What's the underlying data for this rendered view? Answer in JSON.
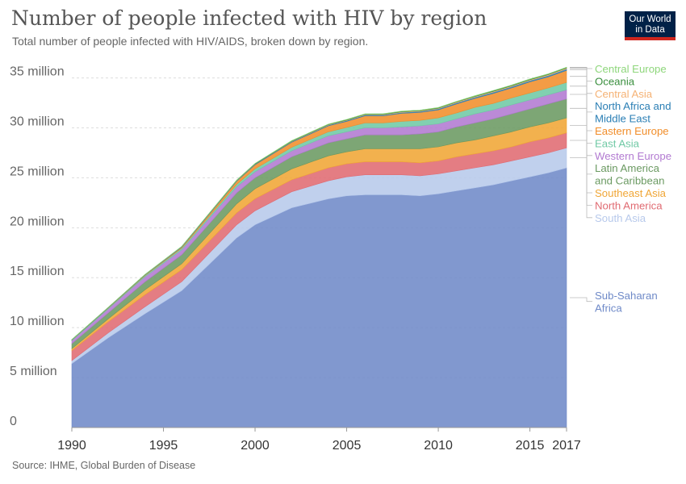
{
  "header": {
    "title": "Number of people infected with HIV by region",
    "subtitle": "Total number of people infected with HIV/AIDS, broken down by region."
  },
  "logo": {
    "line1": "Our World",
    "line2": "in Data",
    "bg_color": "#002147",
    "accent_color": "#ce261e"
  },
  "footer": {
    "source": "Source: IHME, Global Burden of Disease"
  },
  "chart_data": {
    "type": "area",
    "stacked": true,
    "grid": "horizontal dashed",
    "legend_placement": "right (labels at series end)",
    "x": [
      1990,
      1992,
      1994,
      1996,
      1999,
      2000,
      2002,
      2004,
      2005,
      2006,
      2007,
      2008,
      2009,
      2010,
      2011,
      2012,
      2013,
      2014,
      2015,
      2016,
      2017
    ],
    "x_ticks": [
      "1990",
      "1995",
      "2000",
      "2005",
      "2010",
      "2015",
      "2017"
    ],
    "x_tick_values": [
      1990,
      1995,
      2000,
      2005,
      2010,
      2015,
      2017
    ],
    "y_ticks": [
      "0",
      "5 million",
      "10 million",
      "15 million",
      "20 million",
      "25 million",
      "30 million",
      "35 million"
    ],
    "y_tick_values": [
      0,
      5000000,
      10000000,
      15000000,
      20000000,
      25000000,
      30000000,
      35000000
    ],
    "xlim": [
      1990,
      2017
    ],
    "ylim": [
      0,
      36500000
    ],
    "series": [
      {
        "name": "Sub-Saharan Africa",
        "color": "#6f8ac8",
        "values": [
          6.4,
          9.0,
          11.4,
          13.7,
          19.0,
          20.3,
          22.0,
          22.9,
          23.2,
          23.3,
          23.3,
          23.3,
          23.2,
          23.4,
          23.7,
          24.0,
          24.3,
          24.7,
          25.1,
          25.5,
          26.0
        ]
      },
      {
        "name": "South Asia",
        "color": "#b7c9eb",
        "values": [
          0.3,
          0.5,
          0.7,
          0.9,
          1.3,
          1.4,
          1.6,
          1.8,
          1.9,
          2.0,
          2.0,
          2.0,
          2.0,
          2.0,
          2.0,
          2.0,
          2.0,
          2.0,
          2.0,
          2.0,
          2.0
        ]
      },
      {
        "name": "North America",
        "color": "#e06b72",
        "values": [
          1.0,
          1.1,
          1.2,
          1.2,
          1.2,
          1.2,
          1.2,
          1.3,
          1.3,
          1.3,
          1.3,
          1.3,
          1.3,
          1.3,
          1.4,
          1.4,
          1.4,
          1.4,
          1.5,
          1.5,
          1.5
        ]
      },
      {
        "name": "Southeast Asia",
        "color": "#f0a636",
        "values": [
          0.2,
          0.3,
          0.5,
          0.6,
          0.9,
          1.0,
          1.1,
          1.2,
          1.2,
          1.3,
          1.3,
          1.3,
          1.4,
          1.4,
          1.4,
          1.4,
          1.5,
          1.5,
          1.5,
          1.5,
          1.5
        ]
      },
      {
        "name": "Latin America and Caribbean",
        "color": "#6b9a62",
        "values": [
          0.5,
          0.6,
          0.8,
          0.9,
          1.1,
          1.1,
          1.2,
          1.3,
          1.3,
          1.4,
          1.4,
          1.4,
          1.5,
          1.5,
          1.6,
          1.7,
          1.7,
          1.8,
          1.8,
          1.9,
          1.9
        ]
      },
      {
        "name": "Western Europe",
        "color": "#b27ad1",
        "values": [
          0.3,
          0.4,
          0.5,
          0.5,
          0.6,
          0.6,
          0.6,
          0.7,
          0.7,
          0.7,
          0.7,
          0.8,
          0.8,
          0.8,
          0.8,
          0.9,
          0.9,
          0.9,
          0.9,
          0.9,
          0.9
        ]
      },
      {
        "name": "East Asia",
        "color": "#70c9a5",
        "values": [
          0.05,
          0.08,
          0.12,
          0.15,
          0.25,
          0.3,
          0.35,
          0.4,
          0.45,
          0.5,
          0.5,
          0.55,
          0.55,
          0.6,
          0.6,
          0.65,
          0.65,
          0.7,
          0.7,
          0.7,
          0.75
        ]
      },
      {
        "name": "Eastern Europe",
        "color": "#f18e2b",
        "values": [
          0.02,
          0.03,
          0.05,
          0.1,
          0.3,
          0.4,
          0.5,
          0.6,
          0.6,
          0.7,
          0.7,
          0.8,
          0.8,
          0.8,
          0.9,
          0.9,
          1.0,
          1.0,
          1.1,
          1.1,
          1.2
        ]
      },
      {
        "name": "North Africa and Middle East",
        "color": "#2b7fb5",
        "values": [
          0.02,
          0.03,
          0.04,
          0.05,
          0.06,
          0.07,
          0.08,
          0.08,
          0.09,
          0.09,
          0.1,
          0.1,
          0.1,
          0.11,
          0.12,
          0.12,
          0.13,
          0.13,
          0.14,
          0.14,
          0.15
        ]
      },
      {
        "name": "Central Asia",
        "color": "#f5b274",
        "values": [
          0.0,
          0.0,
          0.01,
          0.01,
          0.02,
          0.02,
          0.03,
          0.04,
          0.04,
          0.05,
          0.05,
          0.06,
          0.06,
          0.06,
          0.07,
          0.07,
          0.08,
          0.08,
          0.08,
          0.09,
          0.09
        ]
      },
      {
        "name": "Oceania",
        "color": "#3a8f3e",
        "values": [
          0.01,
          0.01,
          0.01,
          0.02,
          0.03,
          0.03,
          0.04,
          0.04,
          0.05,
          0.05,
          0.05,
          0.05,
          0.05,
          0.05,
          0.05,
          0.06,
          0.06,
          0.06,
          0.06,
          0.06,
          0.06
        ]
      },
      {
        "name": "Central Europe",
        "color": "#8ed67b",
        "values": [
          0.01,
          0.01,
          0.01,
          0.01,
          0.02,
          0.02,
          0.02,
          0.02,
          0.02,
          0.02,
          0.02,
          0.02,
          0.02,
          0.02,
          0.02,
          0.02,
          0.02,
          0.02,
          0.02,
          0.02,
          0.02
        ]
      }
    ],
    "legend_labels": [
      {
        "series": "Central Europe",
        "lines": [
          "Central Europe"
        ]
      },
      {
        "series": "Oceania",
        "lines": [
          "Oceania"
        ]
      },
      {
        "series": "Central Asia",
        "lines": [
          "Central Asia"
        ]
      },
      {
        "series": "North Africa and Middle East",
        "lines": [
          "North Africa and",
          "Middle East"
        ]
      },
      {
        "series": "Eastern Europe",
        "lines": [
          "Eastern Europe"
        ]
      },
      {
        "series": "East Asia",
        "lines": [
          "East Asia"
        ]
      },
      {
        "series": "Western Europe",
        "lines": [
          "Western Europe"
        ]
      },
      {
        "series": "Latin America and Caribbean",
        "lines": [
          "Latin America",
          "and Caribbean"
        ]
      },
      {
        "series": "Southeast Asia",
        "lines": [
          "Southeast Asia"
        ]
      },
      {
        "series": "North America",
        "lines": [
          "North America"
        ]
      },
      {
        "series": "South Asia",
        "lines": [
          "South Asia"
        ]
      },
      {
        "series": "Sub-Saharan Africa",
        "lines": [
          "Sub-Saharan",
          "Africa"
        ]
      }
    ]
  }
}
